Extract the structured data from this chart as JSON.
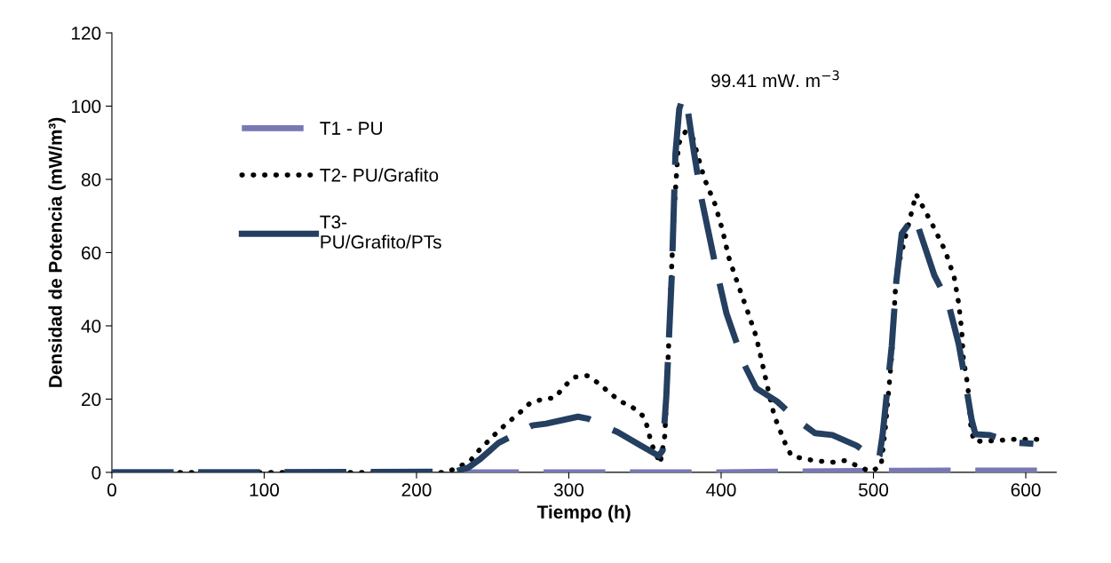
{
  "chart_data": {
    "type": "line",
    "xlabel": "Tiempo (h)",
    "ylabel": "Densidad de Potencia (mW/m³)",
    "xlim": [
      0,
      620
    ],
    "ylim": [
      0,
      120
    ],
    "xticks": [
      0,
      100,
      200,
      300,
      400,
      500,
      600
    ],
    "yticks": [
      0,
      20,
      40,
      60,
      80,
      100,
      120
    ],
    "grid": false,
    "legend": "left",
    "marker": "none",
    "annotations": [
      {
        "text": "99.41 mW. m$^{−3}$",
        "x": 375,
        "y": 99.41
      }
    ],
    "series": [
      {
        "name": "T1 - PU",
        "color": "#7878b4",
        "line_style": "dashed",
        "x": [
          0,
          100,
          200,
          300,
          400,
          450,
          500,
          550,
          610
        ],
        "values": [
          0,
          0,
          0,
          0,
          0,
          0.2,
          0.4,
          0.5,
          0.5
        ]
      },
      {
        "name": "T2- PU/Grafito",
        "color": "#000000",
        "line_style": "dotted",
        "x": [
          0,
          100,
          220,
          235,
          241,
          247,
          253,
          260,
          267,
          274,
          282,
          291,
          297,
          304,
          312,
          320,
          327,
          334,
          342,
          349,
          352,
          354,
          360,
          363,
          365,
          367,
          369,
          372,
          379,
          384,
          389,
          396,
          401,
          405,
          411,
          417,
          423,
          427,
          431,
          435,
          442,
          446,
          455,
          472,
          481,
          490,
          498,
          505,
          508,
          512,
          515,
          528,
          539,
          547,
          553,
          556,
          558,
          559,
          562,
          564,
          566,
          574,
          592,
          610
        ],
        "values": [
          0,
          0,
          0,
          3,
          6,
          8.5,
          11,
          13.6,
          16,
          18.7,
          19.9,
          20.4,
          23.5,
          26,
          26.4,
          24.2,
          21.6,
          19.4,
          17.7,
          15.3,
          11.9,
          8,
          2.4,
          10,
          29,
          51,
          70.5,
          89.7,
          94.8,
          87.5,
          80.2,
          73.2,
          66,
          58.7,
          51.4,
          44.4,
          37.1,
          29.8,
          22.3,
          15.3,
          8,
          4.6,
          3.6,
          2.7,
          3.2,
          1.7,
          0.2,
          1.7,
          12.8,
          31.8,
          54.3,
          76,
          67.4,
          60.6,
          53.3,
          46,
          38.5,
          31,
          23.5,
          12.1,
          8.5,
          8.5,
          9,
          9
        ]
      },
      {
        "name": "T3- PU/Grafito/PTs",
        "color": "#243f60",
        "line_style": "dashed",
        "x": [
          0,
          100,
          225,
          234,
          242,
          254,
          268,
          276,
          285,
          306,
          313,
          322,
          332,
          347,
          359,
          361.6,
          364,
          367.6,
          370,
          372.5,
          375,
          378,
          382,
          387,
          396,
          403.5,
          415,
          423,
          436.6,
          450,
          461.6,
          473,
          489,
          502,
          504,
          506,
          512,
          515,
          518.6,
          527,
          540,
          549,
          556,
          559,
          564.5,
          567,
          576,
          591,
          605
        ],
        "values": [
          0,
          0,
          0.2,
          1.3,
          3.7,
          8.1,
          11,
          12.8,
          13.3,
          15.2,
          14.6,
          12.8,
          11,
          7.4,
          4.5,
          6,
          20.7,
          53.8,
          87,
          99.2,
          102.5,
          99.2,
          87.8,
          75,
          57,
          43.4,
          29.6,
          23,
          19.4,
          14.3,
          10.7,
          10.2,
          7.3,
          3.4,
          4.6,
          10.2,
          34.4,
          52.1,
          65.2,
          70,
          53.8,
          46.5,
          35,
          28,
          14.3,
          10.4,
          10.2,
          8.2,
          7.8
        ]
      }
    ]
  }
}
